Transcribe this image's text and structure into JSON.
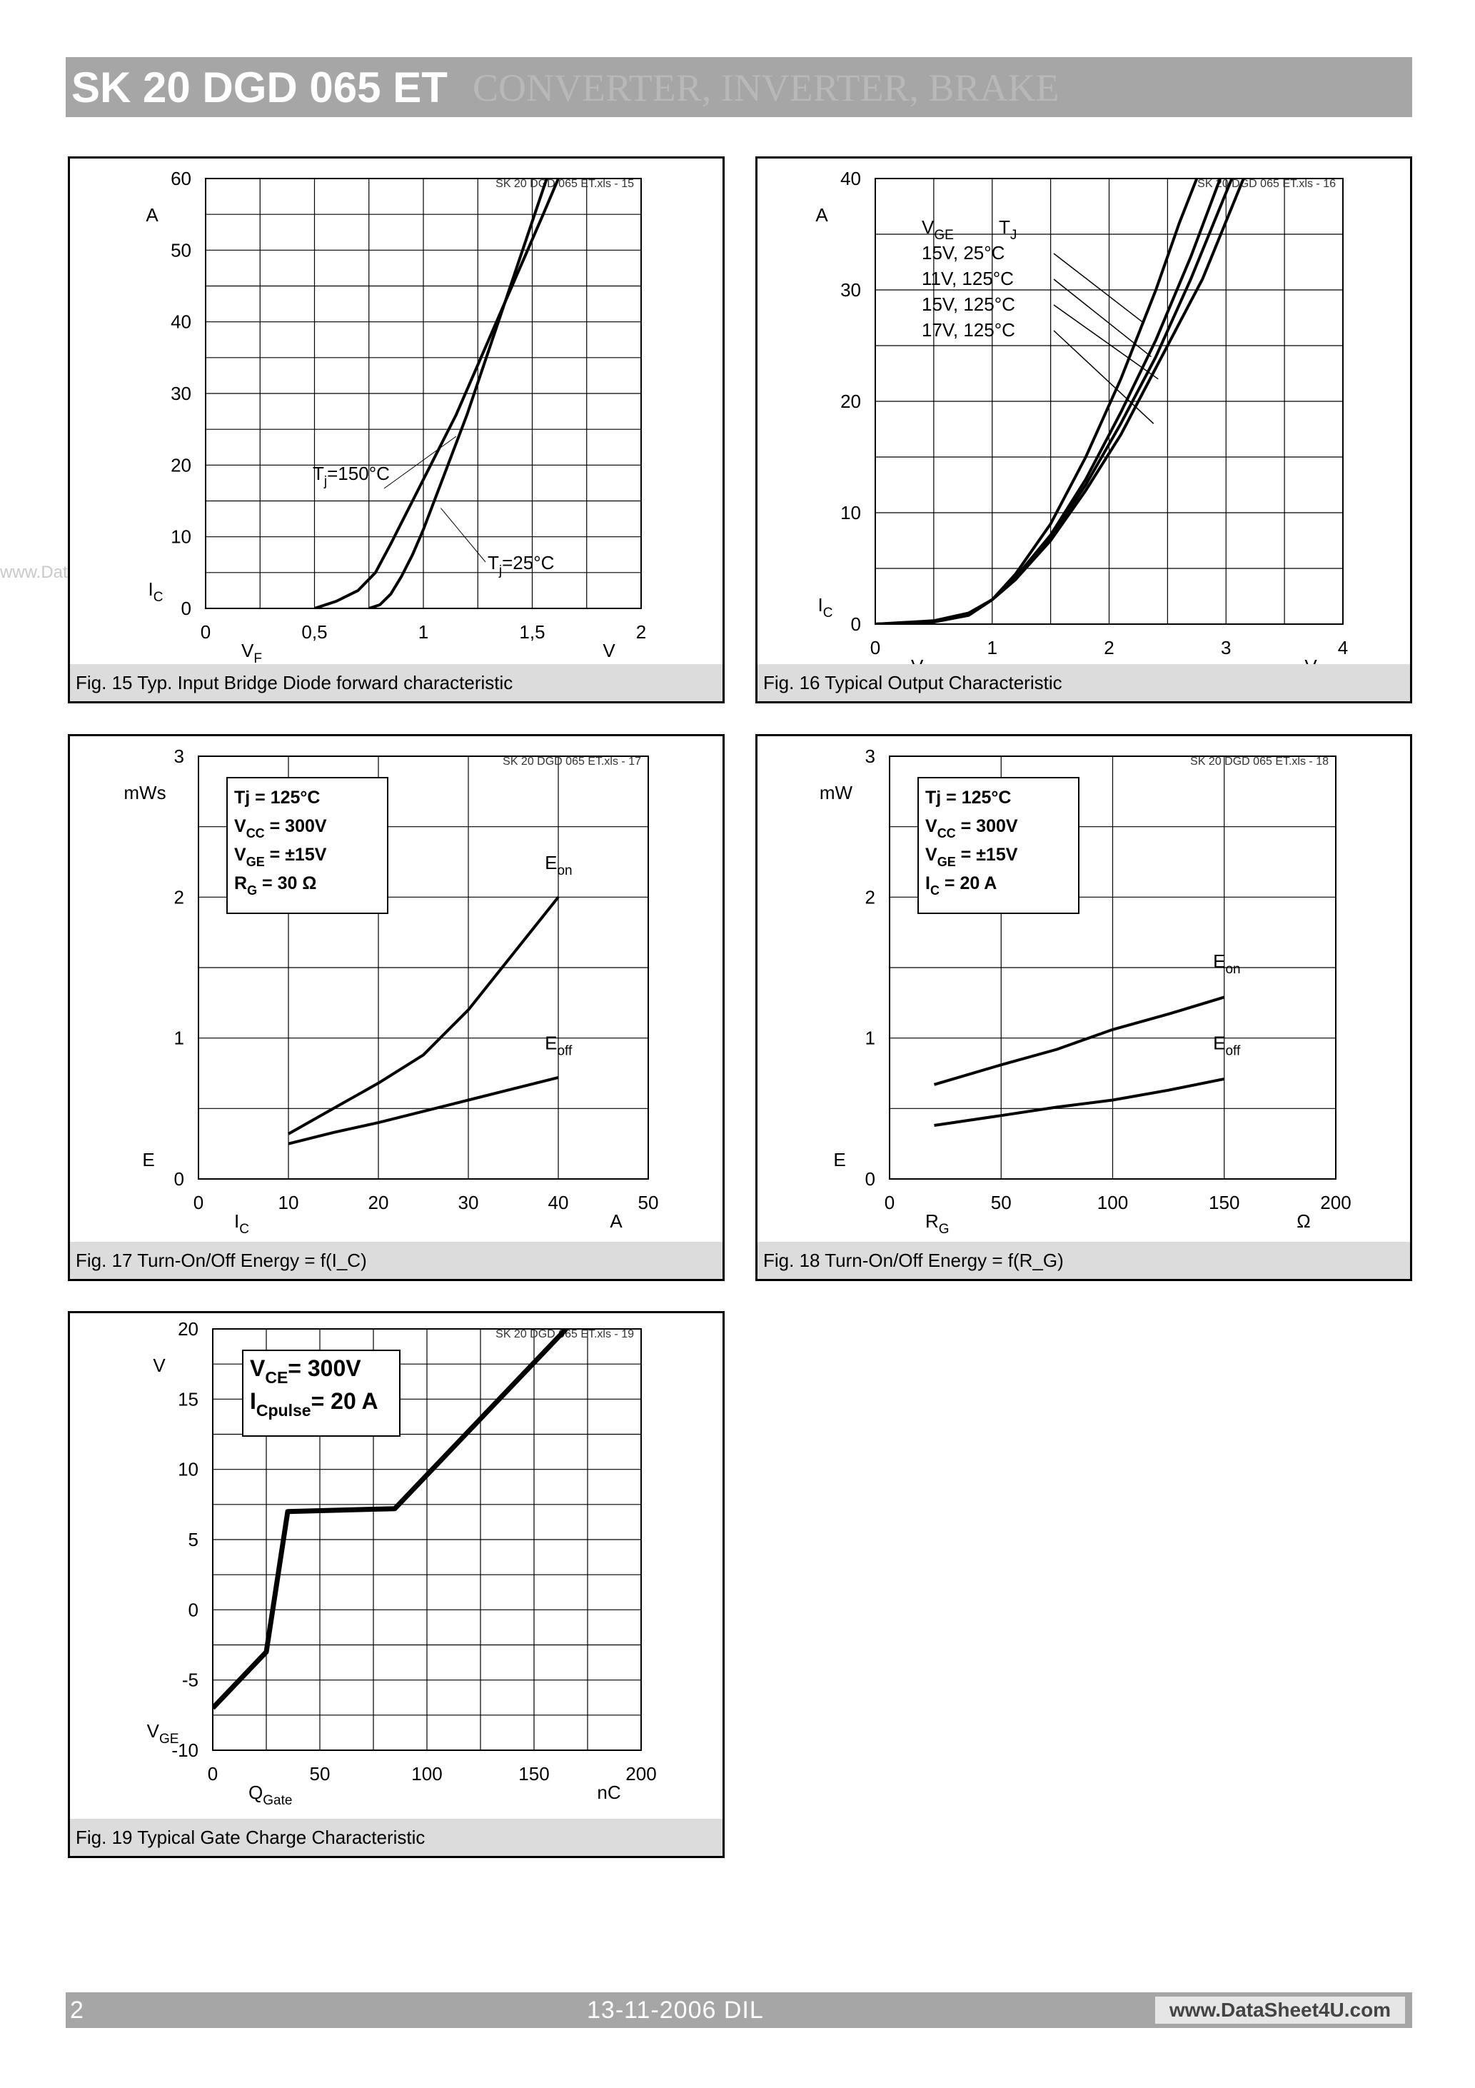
{
  "header": {
    "title": "SK 20 DGD 065 ET",
    "subtitle": "CONVERTER, INVERTER, BRAKE"
  },
  "watermark": "www.DataSheet4U.com",
  "footer": {
    "page": "2",
    "date": "13-11-2006  DIL",
    "site": "www.DataSheet4U.com"
  },
  "chart_data": [
    {
      "id": "fig15",
      "type": "line",
      "caption": "Fig. 15 Typ. Input Bridge Diode forward characteristic",
      "file_tag": "SK 20 DGD 065 ET.xls - 15",
      "xlim": [
        0,
        2
      ],
      "ylim": [
        0,
        60
      ],
      "xticks": [
        0,
        0.5,
        1,
        1.5,
        2
      ],
      "yticks": [
        0,
        10,
        20,
        30,
        40,
        50,
        60
      ],
      "xtick_labels": [
        "0",
        "0,5",
        "1",
        "1,5",
        "2"
      ],
      "ytick_labels": [
        "0",
        "10",
        "20",
        "30",
        "40",
        "50",
        "60"
      ],
      "xlabel": "V_F",
      "xunit": "V",
      "ylabel": "I_C",
      "yunit": "A",
      "grid": true,
      "series": [
        {
          "name": "T_j=150°C",
          "x": [
            0.5,
            0.6,
            0.7,
            0.78,
            0.85,
            0.95,
            1.05,
            1.15,
            1.25,
            1.35,
            1.45,
            1.55,
            1.62
          ],
          "y": [
            0,
            1,
            2.5,
            5,
            9,
            15,
            21,
            27,
            34,
            41,
            48,
            55,
            60
          ]
        },
        {
          "name": "T_j=25°C",
          "x": [
            0.75,
            0.8,
            0.85,
            0.9,
            0.95,
            1.0,
            1.1,
            1.2,
            1.3,
            1.4,
            1.5,
            1.6
          ],
          "y": [
            0,
            0.5,
            2,
            4.5,
            7.5,
            11,
            19,
            27,
            36,
            45,
            54,
            63
          ]
        }
      ],
      "annotations": [
        {
          "label": "T_j=150°C"
        },
        {
          "label": "T_j=25°C"
        }
      ]
    },
    {
      "id": "fig16",
      "type": "line",
      "caption": "Fig. 16 Typical Output Characteristic",
      "file_tag": "SK 20 DGD 065 ET.xls - 16",
      "xlim": [
        0,
        4
      ],
      "ylim": [
        0,
        40
      ],
      "xticks": [
        0,
        1,
        2,
        3,
        4
      ],
      "yticks": [
        0,
        10,
        20,
        30,
        40
      ],
      "xtick_labels": [
        "0",
        "1",
        "2",
        "3",
        "4"
      ],
      "ytick_labels": [
        "0",
        "10",
        "20",
        "30",
        "40"
      ],
      "xlabel": "V_CE",
      "xunit": "V",
      "ylabel": "I_C",
      "yunit": "A",
      "grid": true,
      "legend_header": [
        "V_GE",
        "T_J"
      ],
      "series": [
        {
          "name": "15V, 25°C",
          "x": [
            0,
            0.5,
            0.8,
            1.0,
            1.2,
            1.5,
            1.8,
            2.1,
            2.4,
            2.6,
            2.75
          ],
          "y": [
            0,
            0.3,
            1,
            2.2,
            4.5,
            9,
            15,
            22,
            30,
            36,
            40
          ]
        },
        {
          "name": "11V, 125°C",
          "x": [
            0,
            0.5,
            0.8,
            1.0,
            1.2,
            1.5,
            1.8,
            2.1,
            2.4,
            2.7,
            2.95
          ],
          "y": [
            0,
            0.2,
            0.8,
            2.2,
            4.2,
            8,
            13,
            19,
            25.5,
            33,
            40
          ]
        },
        {
          "name": "15V, 125°C",
          "x": [
            0,
            0.5,
            0.8,
            1.0,
            1.2,
            1.5,
            1.8,
            2.1,
            2.4,
            2.7,
            3.05
          ],
          "y": [
            0,
            0.2,
            0.8,
            2.2,
            4,
            7.8,
            12.5,
            18,
            24,
            31,
            40
          ]
        },
        {
          "name": "17V, 125°C",
          "x": [
            0,
            0.5,
            0.8,
            1.0,
            1.2,
            1.5,
            1.8,
            2.1,
            2.4,
            2.8,
            3.15
          ],
          "y": [
            0,
            0.2,
            0.8,
            2.2,
            4,
            7.5,
            12,
            17,
            23,
            31,
            40
          ]
        }
      ]
    },
    {
      "id": "fig17",
      "type": "line",
      "caption": "Fig. 17 Turn-On/Off Energy = f(I_C)",
      "file_tag": "SK 20 DGD 065 ET.xls - 17",
      "xlim": [
        0,
        50
      ],
      "ylim": [
        0,
        3
      ],
      "xticks": [
        0,
        10,
        20,
        30,
        40,
        50
      ],
      "yticks": [
        0,
        1,
        2,
        3
      ],
      "xtick_labels": [
        "0",
        "10",
        "20",
        "30",
        "40",
        "50"
      ],
      "ytick_labels": [
        "0",
        "1",
        "2",
        "3"
      ],
      "xlabel": "I_C",
      "xunit": "A",
      "ylabel": "E",
      "yunit": "mWs",
      "grid": true,
      "conditions": [
        "Tj = 125°C",
        "V_CC = 300V",
        "V_GE = ±15V",
        "R_G = 30 Ω"
      ],
      "series": [
        {
          "name": "E_on",
          "x": [
            10,
            15,
            20,
            25,
            30,
            35,
            40
          ],
          "y": [
            0.32,
            0.5,
            0.68,
            0.88,
            1.2,
            1.6,
            2.0
          ]
        },
        {
          "name": "E_off",
          "x": [
            10,
            15,
            20,
            25,
            30,
            35,
            40
          ],
          "y": [
            0.25,
            0.33,
            0.4,
            0.48,
            0.56,
            0.64,
            0.72
          ]
        }
      ]
    },
    {
      "id": "fig18",
      "type": "line",
      "caption": "Fig. 18 Turn-On/Off Energy = f(R_G)",
      "file_tag": "SK 20 DGD 065 ET.xls - 18",
      "xlim": [
        0,
        200
      ],
      "ylim": [
        0,
        3
      ],
      "xticks": [
        0,
        50,
        100,
        150,
        200
      ],
      "yticks": [
        0,
        1,
        2,
        3
      ],
      "xtick_labels": [
        "0",
        "50",
        "100",
        "150",
        "200"
      ],
      "ytick_labels": [
        "0",
        "1",
        "2",
        "3"
      ],
      "xlabel": "R_G",
      "xunit": "Ω",
      "ylabel": "E",
      "yunit": "mW",
      "grid": true,
      "conditions": [
        "Tj = 125°C",
        "V_CC = 300V",
        "V_GE = ±15V",
        "I_C = 20 A"
      ],
      "series": [
        {
          "name": "E_on",
          "x": [
            20,
            50,
            75,
            100,
            125,
            150
          ],
          "y": [
            0.67,
            0.81,
            0.92,
            1.06,
            1.17,
            1.29
          ]
        },
        {
          "name": "E_off",
          "x": [
            20,
            50,
            75,
            100,
            125,
            150
          ],
          "y": [
            0.38,
            0.45,
            0.51,
            0.56,
            0.63,
            0.71
          ]
        }
      ]
    },
    {
      "id": "fig19",
      "type": "line",
      "caption": "Fig. 19 Typical Gate Charge Characteristic",
      "file_tag": "SK 20 DGD 065 ET.xls - 19",
      "xlim": [
        0,
        200
      ],
      "ylim": [
        -10,
        20
      ],
      "xticks": [
        0,
        50,
        100,
        150,
        200
      ],
      "yticks": [
        -10,
        -5,
        0,
        5,
        10,
        15,
        20
      ],
      "xtick_labels": [
        "0",
        "50",
        "100",
        "150",
        "200"
      ],
      "ytick_labels": [
        "-10",
        "-5",
        "0",
        "5",
        "10",
        "15",
        "20"
      ],
      "xlabel": "Q_Gate",
      "xunit": "nC",
      "ylabel": "V_GE",
      "yunit": "V",
      "grid": true,
      "conditions": [
        "V_CE= 300V",
        "I_Cpulse= 20 A"
      ],
      "series": [
        {
          "name": "V_GE",
          "x": [
            0,
            25,
            35,
            85,
            165
          ],
          "y": [
            -7,
            -3,
            7,
            7.2,
            20
          ]
        }
      ]
    }
  ]
}
